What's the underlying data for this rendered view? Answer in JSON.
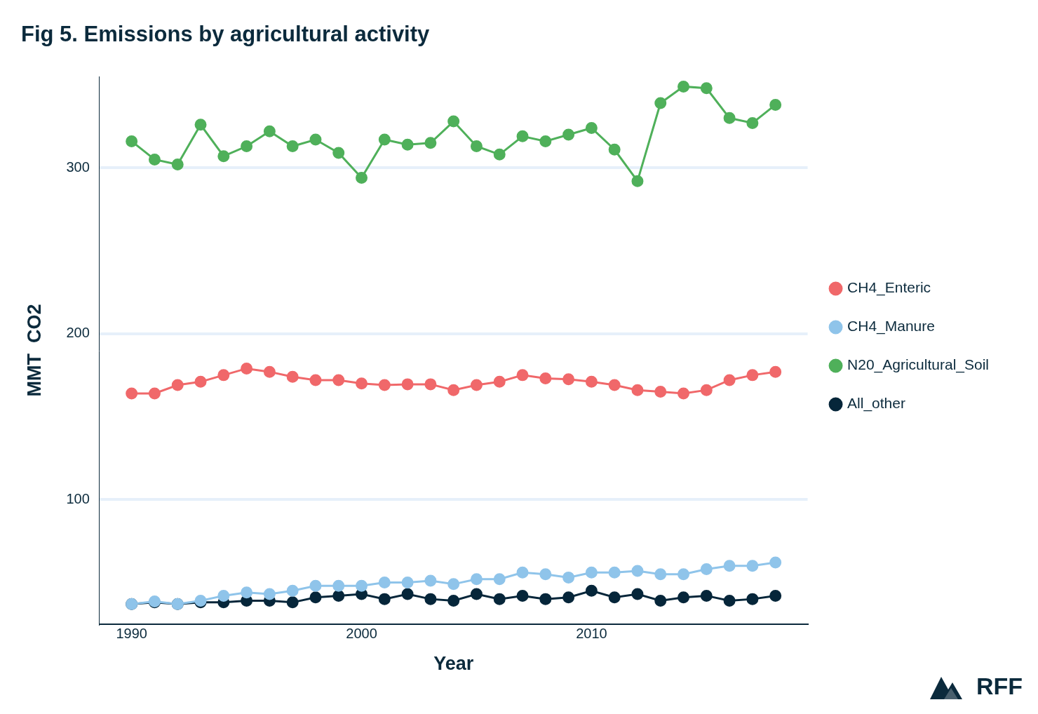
{
  "chart_data": {
    "type": "line",
    "title": "Fig 5. Emissions by agricultural activity",
    "x_label": "Year",
    "y_label": "MMT  CO2",
    "logo_text": "RFF",
    "x": [
      1990,
      1991,
      1992,
      1993,
      1994,
      1995,
      1996,
      1997,
      1998,
      1999,
      2000,
      2001,
      2002,
      2003,
      2004,
      2005,
      2006,
      2007,
      2008,
      2009,
      2010,
      2011,
      2012,
      2013,
      2014,
      2015,
      2016,
      2017,
      2018
    ],
    "series": [
      {
        "name": "CH4_Enteric",
        "color": "#f0686a",
        "marker": "circle",
        "values": [
          164,
          164,
          169,
          171,
          175,
          179,
          177,
          174,
          172,
          172,
          170,
          169,
          169.5,
          169.5,
          166,
          169,
          171,
          175,
          173,
          172.5,
          171,
          169,
          166,
          165,
          164,
          166,
          172,
          175,
          177
        ]
      },
      {
        "name": "CH4_Manure",
        "color": "#8fc4ea",
        "marker": "circle",
        "values": [
          37,
          38.6,
          37,
          39,
          42,
          44,
          43,
          45,
          48,
          48,
          48,
          50,
          50,
          51,
          49,
          52,
          52,
          56,
          55,
          53,
          56,
          56,
          57,
          55,
          55,
          58,
          60,
          60,
          62
        ]
      },
      {
        "name": "N20_Agricultural_Soil",
        "color": "#4fb05a",
        "marker": "circle",
        "values": [
          316,
          305,
          302,
          326,
          307,
          313,
          322,
          313,
          317,
          309,
          294,
          317,
          314,
          315,
          328,
          313,
          308,
          319,
          316,
          320,
          324,
          311,
          292,
          339,
          349,
          348,
          330,
          327,
          338
        ]
      },
      {
        "name": "All_other",
        "color": "#06263a",
        "marker": "circle",
        "values": [
          37,
          38,
          37,
          38,
          38,
          39,
          39,
          38,
          41,
          42,
          43,
          40,
          43,
          40,
          39,
          43,
          40,
          42,
          40,
          41,
          45,
          41,
          43,
          39,
          41,
          42,
          39,
          40,
          42
        ]
      }
    ],
    "xlim": [
      1988.6,
      2019.4
    ],
    "xticks": [
      1990,
      2000,
      2010
    ],
    "ylim": [
      25,
      355
    ],
    "yticks": [
      100,
      200,
      300
    ],
    "grid": "y",
    "legend": "right"
  }
}
